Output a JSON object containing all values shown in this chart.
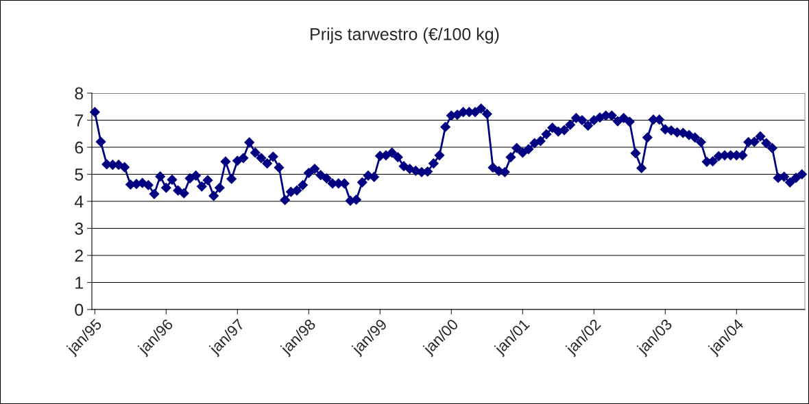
{
  "chart_data": {
    "type": "line",
    "title": "Prijs tarwestro (€/100 kg)",
    "categories": [
      "jan/95",
      null,
      null,
      null,
      null,
      null,
      null,
      null,
      null,
      null,
      null,
      null,
      "jan/96",
      null,
      null,
      null,
      null,
      null,
      null,
      null,
      null,
      null,
      null,
      null,
      "jan/97",
      null,
      null,
      null,
      null,
      null,
      null,
      null,
      null,
      null,
      null,
      null,
      "jan/98",
      null,
      null,
      null,
      null,
      null,
      null,
      null,
      null,
      null,
      null,
      null,
      "jan/99",
      null,
      null,
      null,
      null,
      null,
      null,
      null,
      null,
      null,
      null,
      null,
      "jan/00",
      null,
      null,
      null,
      null,
      null,
      null,
      null,
      null,
      null,
      null,
      null,
      "jan/01",
      null,
      null,
      null,
      null,
      null,
      null,
      null,
      null,
      null,
      null,
      null,
      "jan/02",
      null,
      null,
      null,
      null,
      null,
      null,
      null,
      null,
      null,
      null,
      null,
      "jan/03",
      null,
      null,
      null,
      null,
      null,
      null,
      null,
      null,
      null,
      null,
      null,
      "jan/04",
      null,
      null,
      null,
      null,
      null,
      null,
      null,
      null,
      null,
      null,
      null
    ],
    "series": [
      {
        "color": "#000080",
        "values": [
          7.3,
          6.2,
          5.37,
          5.35,
          5.35,
          5.26,
          4.62,
          4.64,
          4.68,
          4.6,
          4.27,
          4.92,
          4.5,
          4.8,
          4.4,
          4.3,
          4.85,
          4.95,
          4.55,
          4.78,
          4.2,
          4.5,
          5.47,
          4.83,
          5.5,
          5.6,
          6.18,
          5.8,
          5.6,
          5.4,
          5.65,
          5.25,
          4.05,
          4.35,
          4.4,
          4.6,
          5.05,
          5.2,
          4.97,
          4.85,
          4.66,
          4.66,
          4.66,
          4.02,
          4.06,
          4.7,
          4.95,
          4.9,
          5.68,
          5.7,
          5.8,
          5.63,
          5.3,
          5.2,
          5.13,
          5.08,
          5.1,
          5.4,
          5.7,
          6.75,
          7.17,
          7.2,
          7.3,
          7.3,
          7.3,
          7.43,
          7.23,
          5.25,
          5.12,
          5.08,
          5.63,
          5.97,
          5.8,
          5.93,
          6.15,
          6.23,
          6.48,
          6.72,
          6.58,
          6.63,
          6.83,
          7.08,
          7.0,
          6.8,
          7.0,
          7.1,
          7.17,
          7.17,
          6.96,
          7.08,
          6.94,
          5.78,
          5.23,
          6.36,
          7.02,
          7.02,
          6.66,
          6.62,
          6.55,
          6.53,
          6.45,
          6.36,
          6.19,
          5.46,
          5.48,
          5.67,
          5.7,
          5.7,
          5.7,
          5.7,
          6.19,
          6.2,
          6.4,
          6.15,
          5.97,
          4.87,
          4.91,
          4.7,
          4.87,
          5.0
        ]
      }
    ],
    "ylim": [
      0,
      8
    ],
    "yticks": [
      0,
      1,
      2,
      3,
      4,
      5,
      6,
      7,
      8
    ],
    "grid": "y",
    "marker": "diamond",
    "line_style": "solid",
    "legend": false
  }
}
